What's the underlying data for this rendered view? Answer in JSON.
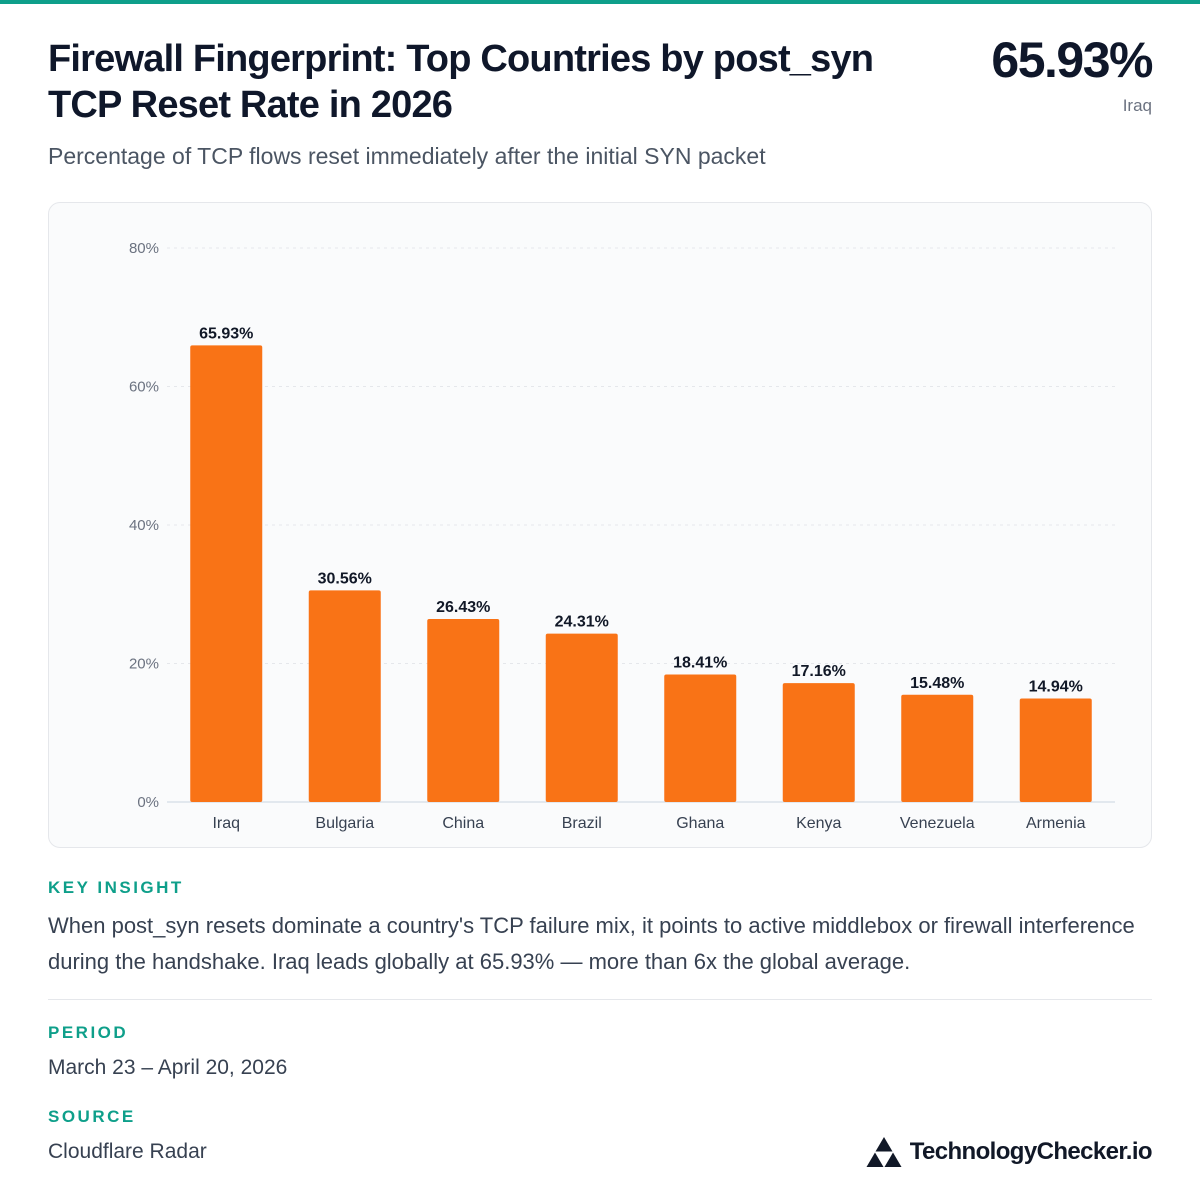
{
  "header": {
    "title": "Firewall Fingerprint: Top Countries by post_syn TCP Reset Rate in 2026",
    "subtitle": "Percentage of TCP flows reset immediately after the initial SYN packet",
    "headline_value": "65.93%",
    "headline_label": "Iraq"
  },
  "chart_data": {
    "type": "bar",
    "title": "Firewall Fingerprint: Top Countries by post_syn TCP Reset Rate in 2026",
    "subtitle": "Percentage of TCP flows reset immediately after the initial SYN packet",
    "xlabel": "",
    "ylabel": "",
    "categories": [
      "Iraq",
      "Bulgaria",
      "China",
      "Brazil",
      "Ghana",
      "Kenya",
      "Venezuela",
      "Armenia"
    ],
    "values": [
      65.93,
      30.56,
      26.43,
      24.31,
      18.41,
      17.16,
      15.48,
      14.94
    ],
    "value_labels": [
      "65.93%",
      "30.56%",
      "26.43%",
      "24.31%",
      "18.41%",
      "17.16%",
      "15.48%",
      "14.94%"
    ],
    "ylim": [
      0,
      80
    ],
    "yticks": [
      0,
      20,
      40,
      60,
      80
    ],
    "ytick_labels": [
      "0%",
      "20%",
      "40%",
      "60%",
      "80%"
    ],
    "grid": true,
    "legend": "none",
    "bar_color": "#f97316"
  },
  "insight": {
    "label": "KEY INSIGHT",
    "text": "When post_syn resets dominate a country's TCP failure mix, it points to active middlebox or firewall interference during the handshake. Iraq leads globally at 65.93% — more than 6x the global average."
  },
  "period": {
    "label": "PERIOD",
    "value": "March 23 – April 20, 2026"
  },
  "source": {
    "label": "SOURCE",
    "value": "Cloudflare Radar"
  },
  "brand": {
    "name": "TechnologyChecker.io",
    "logo_icon": "triforce-logo-icon"
  },
  "colors": {
    "accent": "#0e9f8a",
    "bar": "#f97316",
    "text_dark": "#0f172a"
  }
}
